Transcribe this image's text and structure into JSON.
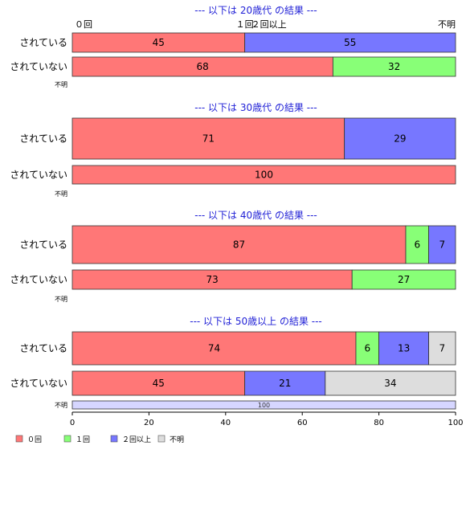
{
  "chart_data": {
    "type": "bar",
    "orientation": "horizontal-stacked-percent",
    "xlim": [
      0,
      100
    ],
    "xticks": [
      0,
      20,
      40,
      60,
      80,
      100
    ],
    "categories": [
      "０回",
      "１回",
      "２回以上",
      "不明"
    ],
    "colors": [
      "#ff7777",
      "#88ff77",
      "#7777ff",
      "#dddddd"
    ],
    "legend": {
      "position": "bottom-left",
      "entries": [
        {
          "label": "０回",
          "color": "#ff7777"
        },
        {
          "label": "１回",
          "color": "#88ff77"
        },
        {
          "label": "２回以上",
          "color": "#7777ff"
        },
        {
          "label": "不明",
          "color": "#dddddd"
        }
      ]
    },
    "panels": [
      {
        "title": "--- 以下は 20歳代 の結果 ---",
        "show_category_labels": true,
        "rows": [
          {
            "label": "されている",
            "values": [
              45,
              0,
              55,
              0
            ]
          },
          {
            "label": "されていない",
            "values": [
              68,
              32,
              0,
              0
            ]
          },
          {
            "label": "不明",
            "values": [
              0,
              0,
              0,
              0
            ]
          }
        ]
      },
      {
        "title": "--- 以下は 30歳代 の結果 ---",
        "rows": [
          {
            "label": "されている",
            "values": [
              71,
              0,
              29,
              0
            ]
          },
          {
            "label": "されていない",
            "values": [
              100,
              0,
              0,
              0
            ]
          },
          {
            "label": "不明",
            "values": [
              0,
              0,
              0,
              0
            ]
          }
        ]
      },
      {
        "title": "--- 以下は 40歳代 の結果 ---",
        "rows": [
          {
            "label": "されている",
            "values": [
              87,
              6,
              7,
              0
            ]
          },
          {
            "label": "されていない",
            "values": [
              73,
              27,
              0,
              0
            ]
          },
          {
            "label": "不明",
            "values": [
              0,
              0,
              0,
              0
            ]
          }
        ]
      },
      {
        "title": "--- 以下は 50歳以上 の結果 ---",
        "rows": [
          {
            "label": "されている",
            "values": [
              74,
              6,
              13,
              7
            ]
          },
          {
            "label": "されていない",
            "values": [
              45,
              0,
              21,
              34
            ]
          },
          {
            "label": "不明",
            "values": [
              0,
              0,
              100,
              0
            ],
            "value_labels": [
              "",
              "",
              "100",
              ""
            ],
            "pale": true
          }
        ]
      }
    ]
  }
}
